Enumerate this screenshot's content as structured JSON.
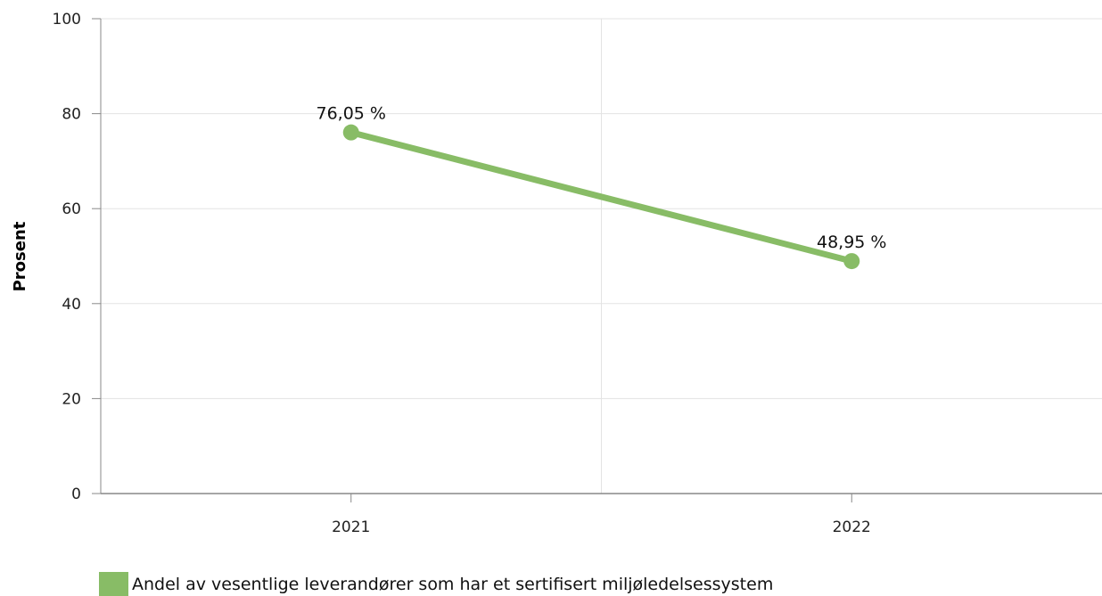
{
  "chart_data": {
    "type": "line",
    "categories": [
      "2021",
      "2022"
    ],
    "series": [
      {
        "name": "Andel av vesentlige leverandører som har et sertifisert miljøledelsessystem",
        "values": [
          76.05,
          48.95
        ],
        "data_labels": [
          "76,05 %",
          "48,95 %"
        ],
        "color": "#88bc66"
      }
    ],
    "ylabel": "Prosent",
    "xlabel": "",
    "ylim": [
      0,
      100
    ],
    "yticks": [
      0,
      20,
      40,
      60,
      80,
      100
    ],
    "grid": true,
    "legend_position": "bottom-left"
  }
}
